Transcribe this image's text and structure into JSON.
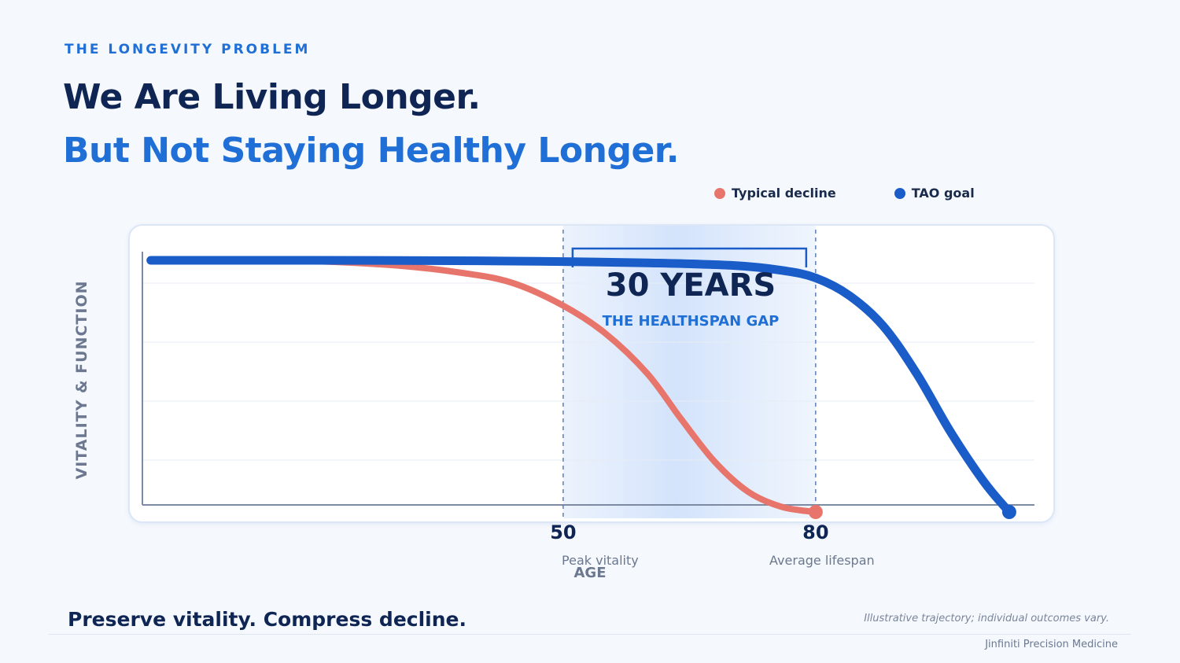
{
  "header": {
    "eyebrow": "THE LONGEVITY PROBLEM",
    "title_line1": "We Are Living Longer.",
    "title_line2": "But Not Staying Healthy Longer."
  },
  "legend": [
    {
      "label": "Typical decline",
      "color": "#e8756b"
    },
    {
      "label": "TAO goal",
      "color": "#1a5cc8"
    }
  ],
  "annotation": {
    "big": "30 YEARS",
    "small": "THE HEALTHSPAN GAP"
  },
  "footer": {
    "tagline": "Preserve vitality. Compress decline.",
    "footnote": "Illustrative trajectory; individual outcomes vary.",
    "brand": "Jinfiniti Precision Medicine"
  },
  "chart_data": {
    "type": "line",
    "ylabel": "VITALITY & FUNCTION",
    "xlabel": "AGE",
    "xlim": [
      0,
      106
    ],
    "ylim": [
      0,
      100
    ],
    "grid": true,
    "legend_position": "top-right",
    "x_ticks": [
      {
        "value": 50,
        "label": "50",
        "sublabel": "Peak vitality"
      },
      {
        "value": 80,
        "label": "80",
        "sublabel": "Average lifespan"
      }
    ],
    "highlight_range": [
      50,
      80
    ],
    "series": [
      {
        "name": "Typical decline",
        "color": "#e8756b",
        "x": [
          1,
          10,
          20,
          30,
          38,
          44,
          50,
          55,
          60,
          64,
          68,
          72,
          76,
          80
        ],
        "y": [
          100,
          100,
          99.7,
          98,
          95,
          91,
          82,
          71,
          55,
          37,
          20,
          8,
          2,
          0
        ]
      },
      {
        "name": "TAO goal",
        "color": "#1a5cc8",
        "x": [
          1,
          20,
          40,
          50,
          60,
          70,
          76,
          80,
          84,
          88,
          92,
          96,
          100,
          103
        ],
        "y": [
          100,
          100,
          99.8,
          99.5,
          99,
          98,
          96,
          93,
          86,
          74,
          55,
          32,
          12,
          0
        ]
      }
    ]
  }
}
